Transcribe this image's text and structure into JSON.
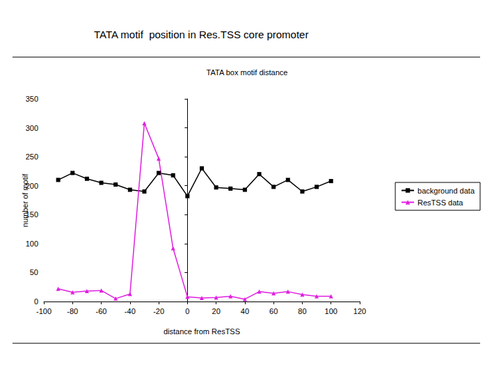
{
  "heading": "TATA motif  position in Res.TSS core promoter",
  "chart_data": {
    "type": "line",
    "title": "TATA box motif distance",
    "xlabel": "distance from ResTSS",
    "ylabel": "number of motif",
    "xlim": [
      -100,
      120
    ],
    "xticks": [
      -100,
      -80,
      -60,
      -40,
      -20,
      0,
      20,
      40,
      60,
      80,
      100,
      120
    ],
    "ylim": [
      0,
      350
    ],
    "yticks": [
      0,
      50,
      100,
      150,
      200,
      250,
      300,
      350
    ],
    "grid": false,
    "legend": "right",
    "x": [
      -90,
      -80,
      -70,
      -60,
      -50,
      -40,
      -30,
      -20,
      -10,
      0,
      10,
      20,
      30,
      40,
      50,
      60,
      70,
      80,
      90,
      100
    ],
    "series": [
      {
        "name": "background data",
        "color": "#000000",
        "marker": "square",
        "line_style": "solid",
        "values": [
          210,
          222,
          212,
          205,
          202,
          193,
          190,
          222,
          218,
          182,
          230,
          197,
          195,
          193,
          220,
          198,
          210,
          190,
          198,
          208
        ]
      },
      {
        "name": "ResTSS data",
        "color": "#e020e0",
        "marker": "triangle",
        "line_style": "solid",
        "values": [
          22,
          16,
          18,
          19,
          5,
          13,
          308,
          247,
          92,
          8,
          6,
          7,
          9,
          4,
          17,
          14,
          17,
          12,
          9,
          9
        ]
      }
    ]
  }
}
